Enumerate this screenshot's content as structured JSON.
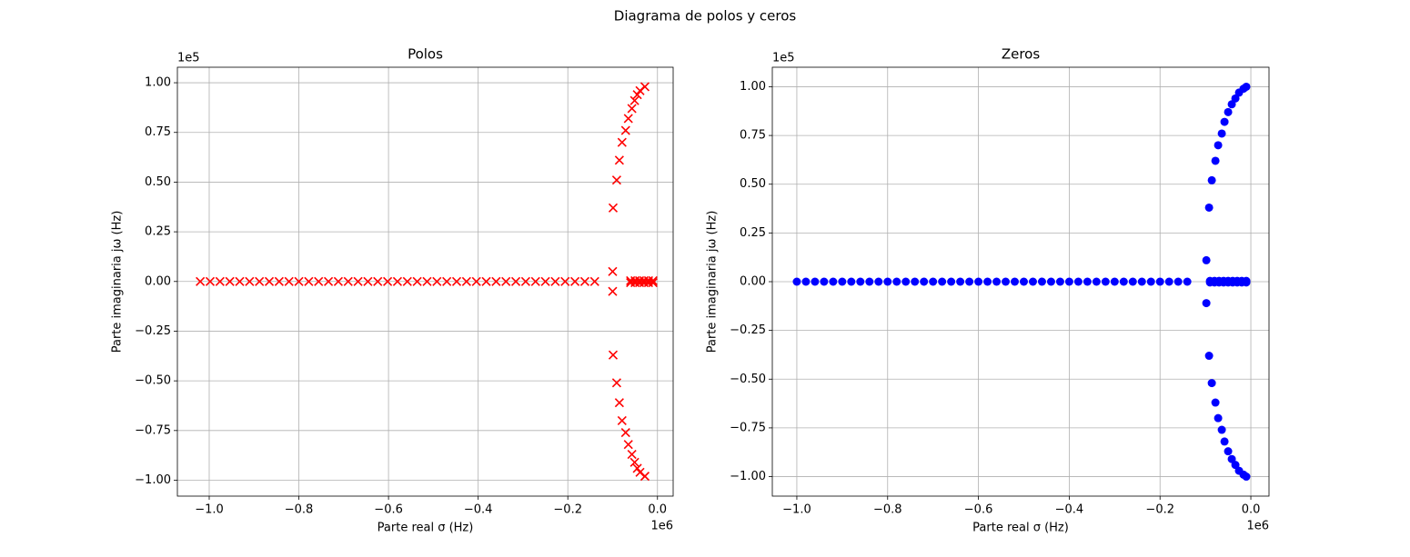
{
  "title": "Diagrama de polos y ceros",
  "chart_data": [
    {
      "type": "scatter",
      "title": "Polos",
      "xlabel": "Parte real σ (Hz)",
      "ylabel": "Parte imaginaria jω (Hz)",
      "x_offset": "1e6",
      "y_offset": "1e5",
      "marker": "x",
      "color": "#ff0000",
      "grid": true,
      "xlim": [
        -1.071,
        0.035
      ],
      "ylim": [
        -1.08,
        1.078
      ],
      "xticks": [
        {
          "value": -1.0,
          "label": "−1.0"
        },
        {
          "value": -0.8,
          "label": "−0.8"
        },
        {
          "value": -0.6,
          "label": "−0.6"
        },
        {
          "value": -0.4,
          "label": "−0.4"
        },
        {
          "value": -0.2,
          "label": "−0.2"
        },
        {
          "value": 0,
          "label": "0.0"
        }
      ],
      "yticks": [
        {
          "value": -1.0,
          "label": "−1.00"
        },
        {
          "value": -0.75,
          "label": "−0.75"
        },
        {
          "value": -0.5,
          "label": "−0.50"
        },
        {
          "value": -0.25,
          "label": "−0.25"
        },
        {
          "value": 0,
          "label": "0.00"
        },
        0.25,
        {
          "value": 0.5,
          "label": "0.50"
        },
        0.75,
        {
          "value": 1.0,
          "label": "1.00"
        }
      ],
      "x": [
        -1.02,
        -0.998,
        -0.976,
        -0.954,
        -0.932,
        -0.91,
        -0.888,
        -0.866,
        -0.844,
        -0.822,
        -0.8,
        -0.778,
        -0.756,
        -0.734,
        -0.712,
        -0.69,
        -0.668,
        -0.646,
        -0.624,
        -0.602,
        -0.58,
        -0.558,
        -0.536,
        -0.514,
        -0.492,
        -0.47,
        -0.448,
        -0.426,
        -0.404,
        -0.382,
        -0.36,
        -0.338,
        -0.316,
        -0.294,
        -0.272,
        -0.25,
        -0.228,
        -0.206,
        -0.184,
        -0.162,
        -0.14,
        -0.1,
        -0.1,
        -0.06,
        -0.05,
        -0.04,
        -0.03,
        -0.02,
        -0.01,
        -0.06,
        -0.05,
        -0.04,
        -0.03,
        -0.02,
        -0.01,
        -0.099,
        -0.091,
        -0.085,
        -0.079,
        -0.071,
        -0.065,
        -0.057,
        -0.051,
        -0.045,
        -0.039,
        -0.028,
        -0.099,
        -0.091,
        -0.085,
        -0.079,
        -0.071,
        -0.065,
        -0.057,
        -0.051,
        -0.045,
        -0.039,
        -0.028
      ],
      "y": [
        0,
        0,
        0,
        0,
        0,
        0,
        0,
        0,
        0,
        0,
        0,
        0,
        0,
        0,
        0,
        0,
        0,
        0,
        0,
        0,
        0,
        0,
        0,
        0,
        0,
        0,
        0,
        0,
        0,
        0,
        0,
        0,
        0,
        0,
        0,
        0,
        0,
        0,
        0,
        0,
        0,
        0.05,
        -0.05,
        0.004,
        0.004,
        0.004,
        0.004,
        0.004,
        0.004,
        -0.006,
        -0.006,
        -0.006,
        -0.006,
        -0.006,
        -0.006,
        0.37,
        0.51,
        0.61,
        0.7,
        0.76,
        0.82,
        0.87,
        0.91,
        0.94,
        0.96,
        0.98,
        -0.37,
        -0.51,
        -0.61,
        -0.7,
        -0.76,
        -0.82,
        -0.87,
        -0.91,
        -0.94,
        -0.96,
        -0.98
      ]
    },
    {
      "type": "scatter",
      "title": "Zeros",
      "xlabel": "Parte real σ (Hz)",
      "ylabel": "Parte imaginaria jω (Hz)",
      "x_offset": "1e6",
      "y_offset": "1e5",
      "marker": "o",
      "color": "#0000ff",
      "grid": true,
      "xlim": [
        -1.054,
        0.04
      ],
      "ylim": [
        -1.1,
        1.1
      ],
      "xticks": [
        {
          "value": -1.0,
          "label": "−1.0"
        },
        {
          "value": -0.8,
          "label": "−0.8"
        },
        {
          "value": -0.6,
          "label": "−0.6"
        },
        {
          "value": -0.4,
          "label": "−0.4"
        },
        {
          "value": -0.2,
          "label": "−0.2"
        },
        {
          "value": 0,
          "label": "0.0"
        }
      ],
      "yticks": [
        {
          "value": -1.0,
          "label": "−1.00"
        },
        {
          "value": -0.75,
          "label": "−0.75"
        },
        {
          "value": -0.5,
          "label": "−0.50"
        },
        {
          "value": -0.25,
          "label": "−0.25"
        },
        {
          "value": 0,
          "label": "0.00"
        },
        0.25,
        {
          "value": 0.5,
          "label": "0.50"
        },
        0.75,
        {
          "value": 1.0,
          "label": "1.00"
        }
      ],
      "x": [
        -1.0,
        -0.98,
        -0.96,
        -0.94,
        -0.92,
        -0.9,
        -0.88,
        -0.86,
        -0.84,
        -0.82,
        -0.8,
        -0.78,
        -0.76,
        -0.74,
        -0.72,
        -0.7,
        -0.68,
        -0.66,
        -0.64,
        -0.62,
        -0.6,
        -0.58,
        -0.56,
        -0.54,
        -0.52,
        -0.5,
        -0.48,
        -0.46,
        -0.44,
        -0.42,
        -0.4,
        -0.38,
        -0.36,
        -0.34,
        -0.32,
        -0.3,
        -0.28,
        -0.26,
        -0.24,
        -0.22,
        -0.2,
        -0.18,
        -0.16,
        -0.14,
        -0.098,
        -0.098,
        -0.09,
        -0.08,
        -0.07,
        -0.06,
        -0.05,
        -0.04,
        -0.03,
        -0.02,
        -0.01,
        -0.09,
        -0.08,
        -0.07,
        -0.06,
        -0.05,
        -0.04,
        -0.03,
        -0.02,
        -0.01,
        -0.092,
        -0.086,
        -0.078,
        -0.072,
        -0.064,
        -0.058,
        -0.05,
        -0.042,
        -0.034,
        -0.026,
        -0.016,
        -0.01,
        -0.092,
        -0.086,
        -0.078,
        -0.072,
        -0.064,
        -0.058,
        -0.05,
        -0.042,
        -0.034,
        -0.026,
        -0.016,
        -0.01
      ],
      "y": [
        0,
        0,
        0,
        0,
        0,
        0,
        0,
        0,
        0,
        0,
        0,
        0,
        0,
        0,
        0,
        0,
        0,
        0,
        0,
        0,
        0,
        0,
        0,
        0,
        0,
        0,
        0,
        0,
        0,
        0,
        0,
        0,
        0,
        0,
        0,
        0,
        0,
        0,
        0,
        0,
        0,
        0,
        0,
        0,
        0.11,
        -0.11,
        0.004,
        0.004,
        0.004,
        0.004,
        0.004,
        0.004,
        0.004,
        0.004,
        0.004,
        -0.004,
        -0.004,
        -0.004,
        -0.004,
        -0.004,
        -0.004,
        -0.004,
        -0.004,
        -0.004,
        0.38,
        0.52,
        0.62,
        0.7,
        0.76,
        0.82,
        0.87,
        0.91,
        0.94,
        0.97,
        0.99,
        1.0,
        -0.38,
        -0.52,
        -0.62,
        -0.7,
        -0.76,
        -0.82,
        -0.87,
        -0.91,
        -0.94,
        -0.97,
        -0.99,
        -1.0
      ]
    }
  ]
}
